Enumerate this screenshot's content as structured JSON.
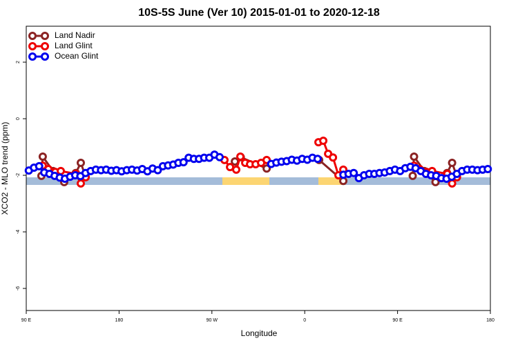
{
  "chart_data": {
    "type": "line",
    "title": "10S-5S June (Ver 10)   2015-01-01 to 2020-12-18",
    "x_label": "Longitude",
    "y_label": "XCO2 - MLO trend (ppm)",
    "xlim": [
      90,
      540
    ],
    "ylim": [
      -6.78,
      3.27
    ],
    "xticks": [
      {
        "value": 90,
        "label": "90 E"
      },
      180,
      {
        "value": 270,
        "label": "90 W"
      },
      {
        "value": 360,
        "label": "0"
      },
      {
        "value": 450,
        "label": "90 E"
      },
      {
        "value": 540,
        "label": "180"
      }
    ],
    "yticks": [
      2,
      0,
      -2,
      -4,
      -6
    ],
    "grid": false,
    "legend": "top-left",
    "series": [
      {
        "name": "Land Nadir",
        "color": "#8b2323",
        "x": [
          104.7,
          106,
          116,
          126.8,
          138,
          142.9,
          147.6,
          null,
          292.3,
          298,
          323.1,
          null,
          374,
          397.4,
          null,
          464.7,
          466,
          476,
          486.8,
          498,
          502.9,
          507.6
        ],
        "values": [
          -2.02,
          -1.34,
          -1.85,
          -2.24,
          -1.92,
          -1.56,
          -2.05,
          null,
          -1.51,
          -1.36,
          -1.76,
          null,
          -1.46,
          -2.2,
          null,
          -2.02,
          -1.34,
          -1.85,
          -2.24,
          -1.92,
          -1.56,
          -2.05
        ]
      },
      {
        "name": "Land Glint",
        "color": "#ee0000",
        "x": [
          106,
          111.4,
          118.1,
          123.5,
          138.2,
          142.9,
          147.6,
          null,
          282.2,
          287.6,
          293.6,
          297.6,
          302.3,
          307,
          312.4,
          317.7,
          323.1,
          null,
          373.3,
          378,
          382.7,
          387.4,
          392.7,
          397.4,
          null,
          466,
          471.4,
          478.1,
          483.5,
          498.2,
          502.9,
          507.6
        ],
        "values": [
          -1.66,
          -1.78,
          -1.88,
          -1.85,
          -1.95,
          -2.29,
          -2.07,
          null,
          -1.46,
          -1.71,
          -1.8,
          -1.34,
          -1.56,
          -1.61,
          -1.61,
          -1.56,
          -1.46,
          null,
          -0.83,
          -0.78,
          -1.24,
          -1.37,
          -2.0,
          -1.8,
          null,
          -1.66,
          -1.78,
          -1.88,
          -1.85,
          -1.95,
          -2.29,
          -2.07
        ]
      },
      {
        "name": "Ocean Glint",
        "color": "#0000ee",
        "x": [
          92.5,
          97.5,
          102.5,
          107.5,
          112.5,
          117.5,
          122.5,
          127.5,
          132.5,
          137.5,
          142.5,
          147.5,
          152.5,
          157.5,
          162.5,
          167.5,
          172.5,
          177.5,
          182.5,
          187.5,
          192.5,
          197.5,
          202.5,
          207.5,
          212.5,
          217.5,
          222.5,
          227.5,
          232.5,
          237.5,
          242.5,
          247.5,
          252.5,
          257.5,
          262.5,
          267.5,
          272.5,
          277.5,
          null,
          327.5,
          332.5,
          337.5,
          342.5,
          347.5,
          352.5,
          357.5,
          362.5,
          367.5,
          372.5,
          null,
          397.5,
          402.5,
          407.5,
          412.5,
          417.5,
          422.5,
          427.5,
          432.5,
          437.5,
          442.5,
          447.5,
          452.5,
          457.5,
          462.5,
          467.5,
          472.5,
          477.5,
          482.5,
          487.5,
          492.5,
          497.5,
          502.5,
          507.5,
          512.5,
          517.5,
          522.5,
          527.5,
          532.5,
          537.5
        ],
        "values": [
          -1.83,
          -1.73,
          -1.68,
          -1.9,
          -1.95,
          -2.02,
          -2.08,
          -2.12,
          -2.05,
          -2.0,
          -2.03,
          -1.92,
          -1.85,
          -1.8,
          -1.82,
          -1.8,
          -1.84,
          -1.82,
          -1.86,
          -1.82,
          -1.8,
          -1.83,
          -1.78,
          -1.86,
          -1.76,
          -1.82,
          -1.68,
          -1.65,
          -1.62,
          -1.56,
          -1.54,
          -1.38,
          -1.42,
          -1.42,
          -1.38,
          -1.38,
          -1.27,
          -1.36,
          null,
          -1.6,
          -1.55,
          -1.52,
          -1.5,
          -1.45,
          -1.48,
          -1.42,
          -1.45,
          -1.38,
          -1.42,
          null,
          -1.98,
          -1.95,
          -1.92,
          -2.1,
          -2.0,
          -1.95,
          -1.95,
          -1.92,
          -1.9,
          -1.85,
          -1.8,
          -1.85,
          -1.75,
          -1.7,
          -1.75,
          -1.85,
          -1.95,
          -2.0,
          -2.02,
          -2.1,
          -2.12,
          -2.05,
          -1.95,
          -1.85,
          -1.8,
          -1.8,
          -1.82,
          -1.8,
          -1.78
        ]
      }
    ]
  }
}
